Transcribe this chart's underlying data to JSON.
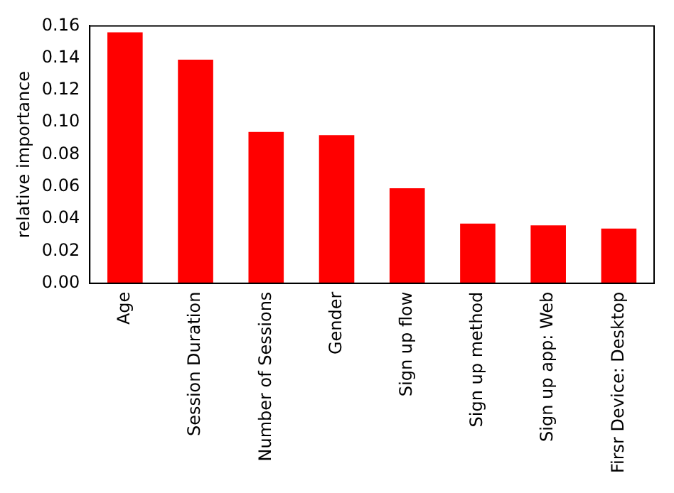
{
  "chart_data": {
    "type": "bar",
    "ylabel": "relative importance",
    "categories": [
      "Age",
      "Session Duration",
      "Number of Sessions",
      "Gender",
      "Sign up flow",
      "Sign up method",
      "Sign up app: Web",
      "Firsr Device: Desktop"
    ],
    "values": [
      0.156,
      0.139,
      0.094,
      0.092,
      0.059,
      0.037,
      0.036,
      0.034
    ],
    "color": "#ff0000",
    "ylim": [
      0,
      0.16
    ],
    "yticks": [
      {
        "value": 0,
        "label": "0.00"
      },
      {
        "value": 0.02,
        "label": "0.02"
      },
      {
        "value": 0.04,
        "label": "0.04"
      },
      {
        "value": 0.06,
        "label": "0.06"
      },
      {
        "value": 0.08,
        "label": "0.08"
      },
      {
        "value": 0.1,
        "label": "0.10"
      },
      {
        "value": 0.12,
        "label": "0.12"
      },
      {
        "value": 0.14,
        "label": "0.14"
      },
      {
        "value": 0.16,
        "label": "0.16"
      }
    ],
    "grid": false,
    "legend": false
  }
}
